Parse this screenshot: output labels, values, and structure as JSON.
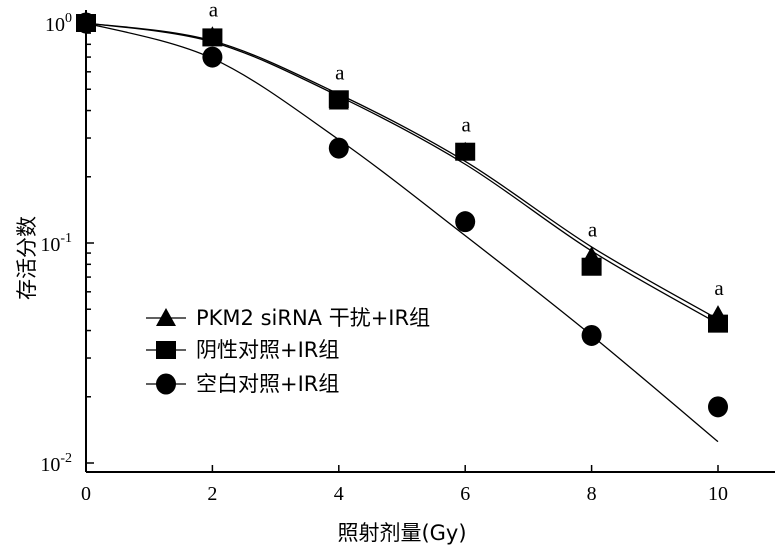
{
  "chart_data": {
    "type": "scatter",
    "xlabel": "照射剂量(Gy)",
    "ylabel": "存活分数",
    "xlim": [
      0,
      10
    ],
    "ylim": [
      0.01,
      1.0
    ],
    "yscale": "log",
    "x_ticks": [
      "0",
      "2",
      "4",
      "6",
      "8",
      "10"
    ],
    "y_ticks": [
      {
        "base": "10",
        "exp": "0",
        "value": 1.0
      },
      {
        "base": "10",
        "exp": "-1",
        "value": 0.1
      },
      {
        "base": "10",
        "exp": "-2",
        "value": 0.01
      }
    ],
    "legend_position": "bottom-left",
    "series": [
      {
        "name": "PKM2 siRNA 干扰+IR组",
        "marker": "triangle",
        "x": [
          0,
          2,
          4,
          6,
          8,
          10
        ],
        "y": [
          1.0,
          0.87,
          0.44,
          0.26,
          0.087,
          0.047
        ],
        "fit": [
          1.0,
          0.83,
          0.475,
          0.235,
          0.096,
          0.045
        ]
      },
      {
        "name": "阴性对照+IR组",
        "marker": "square",
        "x": [
          0,
          2,
          4,
          6,
          8,
          10
        ],
        "y": [
          1.0,
          0.86,
          0.45,
          0.26,
          0.078,
          0.043
        ],
        "fit": [
          1.0,
          0.82,
          0.465,
          0.228,
          0.092,
          0.043
        ]
      },
      {
        "name": "空白对照+IR组",
        "marker": "circle",
        "x": [
          0,
          2,
          4,
          6,
          8,
          10
        ],
        "y": [
          1.0,
          0.7,
          0.27,
          0.125,
          0.038,
          0.018
        ],
        "fit": [
          1.0,
          0.69,
          0.295,
          0.108,
          0.038,
          0.0125
        ]
      }
    ],
    "annotations": [
      {
        "x": 2,
        "y": 0.87,
        "text": "a"
      },
      {
        "x": 4,
        "y": 0.45,
        "text": "a"
      },
      {
        "x": 6,
        "y": 0.26,
        "text": "a"
      },
      {
        "x": 8,
        "y": 0.087,
        "text": "a"
      },
      {
        "x": 10,
        "y": 0.047,
        "text": "a"
      }
    ]
  }
}
